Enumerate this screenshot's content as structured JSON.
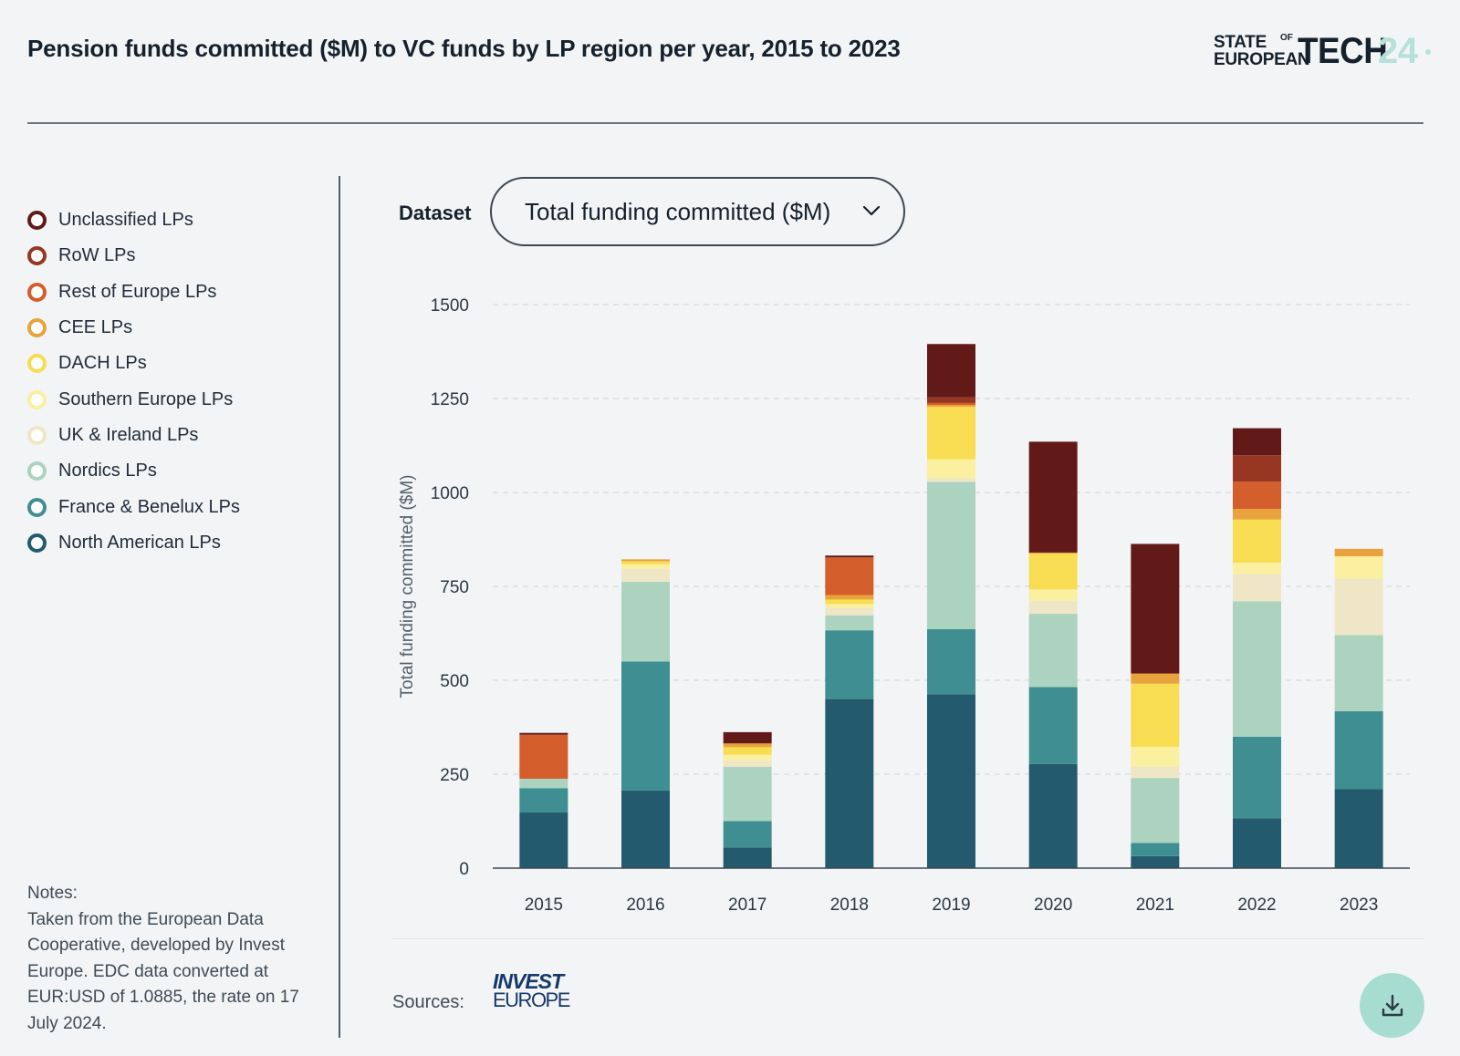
{
  "header": {
    "title": "Pension funds committed ($M) to VC funds by LP region per year, 2015 to 2023",
    "brand": {
      "line1": "STATE",
      "of": "OF",
      "line2": "EUROPEAN",
      "word": "TECH",
      "year": "24"
    }
  },
  "legend": [
    {
      "label": "Unclassified LPs",
      "color": "#621a18"
    },
    {
      "label": "RoW LPs",
      "color": "#973621"
    },
    {
      "label": "Rest of Europe LPs",
      "color": "#d45d2c"
    },
    {
      "label": "CEE LPs",
      "color": "#e9a33c"
    },
    {
      "label": "DACH LPs",
      "color": "#f8dc52"
    },
    {
      "label": "Southern Europe LPs",
      "color": "#fbefa0"
    },
    {
      "label": "UK & Ireland LPs",
      "color": "#efe6c6"
    },
    {
      "label": "Nordics LPs",
      "color": "#abd3c0"
    },
    {
      "label": "France & Benelux LPs",
      "color": "#3f8e91"
    },
    {
      "label": "North American LPs",
      "color": "#245a6e"
    }
  ],
  "notes": "Notes:\nTaken from the European Data Cooperative, developed by Invest Europe. EDC data converted at EUR:USD of 1.0885, the rate on 17 July 2024.",
  "dataset": {
    "label": "Dataset",
    "selected": "Total funding committed ($M)"
  },
  "sources": {
    "label": "Sources:",
    "logo_line1": "INVEST",
    "logo_line2": "EUROPE"
  },
  "icons": {
    "dropdown": "chevron-down-icon",
    "download": "download-icon"
  },
  "chart_data": {
    "type": "bar",
    "stacked": true,
    "ylabel": "Total funding committed ($M)",
    "ylim": [
      0,
      1500
    ],
    "yticks": [
      0,
      250,
      500,
      750,
      1000,
      1250,
      1500
    ],
    "grid": true,
    "categories": [
      "2015",
      "2016",
      "2017",
      "2018",
      "2019",
      "2020",
      "2021",
      "2022",
      "2023"
    ],
    "series": [
      {
        "name": "North American LPs",
        "color": "#245a6e",
        "values": [
          148,
          207,
          55,
          450,
          463,
          277,
          32,
          133,
          210
        ]
      },
      {
        "name": "France & Benelux LPs",
        "color": "#3f8e91",
        "values": [
          65,
          343,
          70,
          183,
          173,
          205,
          35,
          217,
          208
        ]
      },
      {
        "name": "Nordics LPs",
        "color": "#abd3c0",
        "values": [
          25,
          212,
          145,
          40,
          392,
          195,
          173,
          360,
          202
        ]
      },
      {
        "name": "UK & Ireland LPs",
        "color": "#efe6c6",
        "values": [
          0,
          35,
          17,
          20,
          10,
          35,
          30,
          73,
          150
        ]
      },
      {
        "name": "Southern Europe LPs",
        "color": "#fbefa0",
        "values": [
          0,
          12,
          15,
          10,
          50,
          30,
          53,
          30,
          60
        ]
      },
      {
        "name": "DACH LPs",
        "color": "#f8dc52",
        "values": [
          0,
          8,
          20,
          12,
          140,
          95,
          168,
          115,
          0
        ]
      },
      {
        "name": "CEE LPs",
        "color": "#e9a33c",
        "values": [
          0,
          5,
          10,
          12,
          5,
          3,
          27,
          28,
          20
        ]
      },
      {
        "name": "Rest of Europe LPs",
        "color": "#d45d2c",
        "values": [
          117,
          0,
          0,
          100,
          5,
          0,
          0,
          73,
          0
        ]
      },
      {
        "name": "RoW LPs",
        "color": "#973621",
        "values": [
          0,
          0,
          0,
          0,
          15,
          0,
          0,
          70,
          0
        ]
      },
      {
        "name": "Unclassified LPs",
        "color": "#621a18",
        "values": [
          5,
          0,
          30,
          5,
          142,
          295,
          345,
          72,
          0
        ]
      }
    ]
  }
}
